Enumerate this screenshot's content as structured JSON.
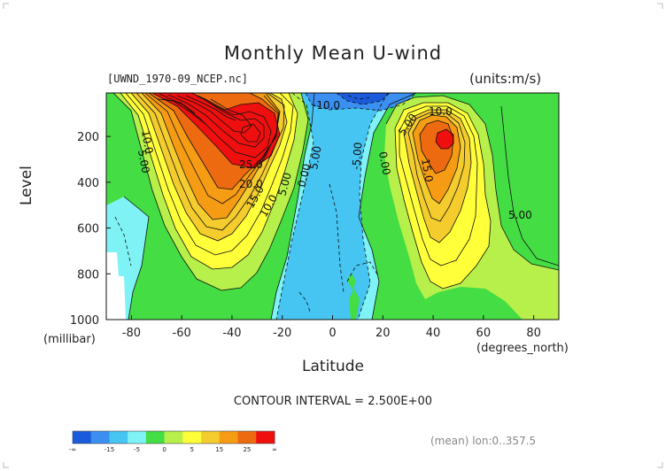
{
  "figure": {
    "title": "Monthly Mean U-wind",
    "file_label": "[UWND_1970-09_NCEP.nc]",
    "units_label": "(units:m/s)",
    "y_axis_label": "Level",
    "y_axis_unit": "(millibar)",
    "x_axis_label": "Latitude",
    "x_axis_unit": "(degrees_north)",
    "contour_interval": "CONTOUR INTERVAL = 2.500E+00",
    "mean_note": "(mean) lon:0..357.5"
  },
  "chart_data": {
    "type": "heatmap",
    "subtype": "filled contour (latitude-pressure cross section)",
    "title": "Monthly Mean U-wind",
    "xlabel": "Latitude",
    "ylabel": "Level",
    "x_unit": "(degrees_north)",
    "y_unit": "(millibar)",
    "xlim": [
      -90,
      90
    ],
    "ylim": [
      1000,
      10
    ],
    "x_ticks": [
      "-80",
      "-60",
      "-40",
      "-20",
      "0",
      "20",
      "40",
      "60",
      "80"
    ],
    "x_tick_values": [
      -80,
      -60,
      -40,
      -20,
      0,
      20,
      40,
      60,
      80
    ],
    "y_ticks": [
      "200",
      "400",
      "600",
      "800",
      "1000"
    ],
    "y_tick_values": [
      200,
      400,
      600,
      800,
      1000
    ],
    "contour_interval": 2.5,
    "colorbar": {
      "labels": [
        "-∞",
        "-15",
        "-5",
        "0",
        "5",
        "15",
        "25",
        "∞"
      ],
      "colors": [
        "#1a5bdc",
        "#3a8ff0",
        "#46c4f2",
        "#7ff2f5",
        "#44dd44",
        "#b7f04a",
        "#ffff3a",
        "#f5cc2e",
        "#f59b14",
        "#ee6a10",
        "#ef0f0f"
      ]
    },
    "series": [
      {
        "name": "10.0",
        "points": [
          [
            -79,
            200
          ]
        ]
      },
      {
        "name": "5.00",
        "points": [
          [
            -83,
            300
          ]
        ]
      },
      {
        "name": "25.0",
        "points": [
          [
            -33,
            300
          ]
        ]
      },
      {
        "name": "20.0",
        "points": [
          [
            -33,
            380
          ]
        ]
      },
      {
        "name": "15.0",
        "points": [
          [
            -36,
            470
          ]
        ]
      },
      {
        "name": "10.0",
        "points": [
          [
            -26,
            500
          ]
        ]
      },
      {
        "name": "5.00",
        "points": [
          [
            -19,
            400
          ]
        ]
      },
      {
        "name": "-10.0",
        "points": [
          [
            -3,
            60
          ]
        ]
      },
      {
        "name": "0.00",
        "points": [
          [
            -13,
            330
          ]
        ]
      },
      {
        "name": "5.00",
        "points": [
          [
            -7,
            270
          ]
        ]
      },
      {
        "name": "-5.00",
        "points": [
          [
            11,
            270
          ]
        ]
      },
      {
        "name": "0.00",
        "points": [
          [
            24,
            280
          ]
        ]
      },
      {
        "name": "5.00",
        "points": [
          [
            31,
            160
          ]
        ]
      },
      {
        "name": "10.0",
        "points": [
          [
            42,
            70
          ]
        ]
      },
      {
        "name": "15.0",
        "points": [
          [
            40,
            310
          ]
        ]
      },
      {
        "name": "5.00",
        "points": [
          [
            73,
            500
          ]
        ]
      }
    ],
    "jet_maxima": [
      {
        "lat": -30,
        "level": 200,
        "range": "above 25"
      },
      {
        "lat": 45,
        "level": 200,
        "range": "above 25"
      }
    ]
  }
}
